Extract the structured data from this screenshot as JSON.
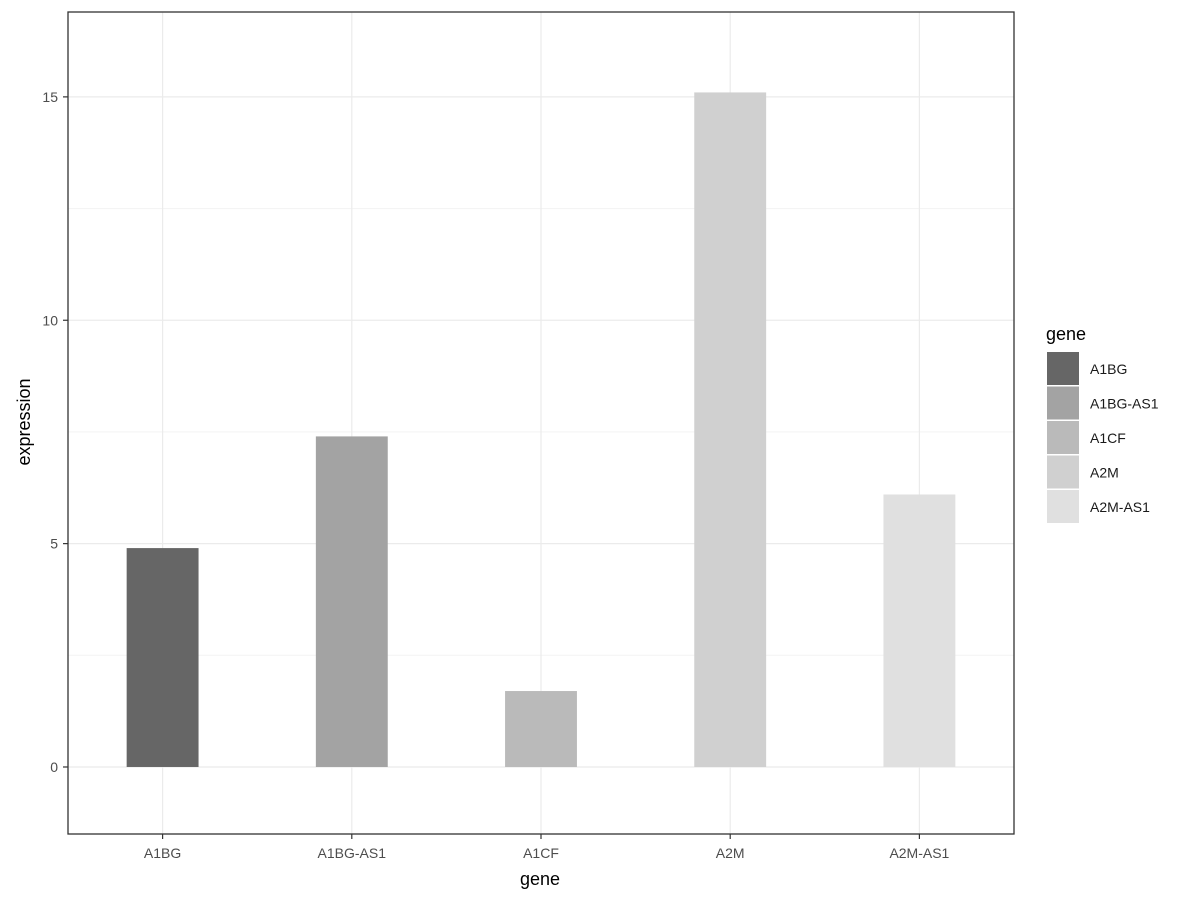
{
  "chart_data": {
    "type": "bar",
    "xlabel": "gene",
    "ylabel": "expression",
    "categories": [
      "A1BG",
      "A1BG-AS1",
      "A1CF",
      "A2M",
      "A2M-AS1"
    ],
    "values": [
      4.9,
      7.4,
      1.7,
      15.1,
      6.1
    ],
    "ylim": [
      -1.5,
      16.9
    ],
    "yticks": [
      0,
      5,
      10,
      15
    ],
    "grid": true,
    "legend": {
      "title": "gene",
      "position": "right",
      "entries": [
        "A1BG",
        "A1BG-AS1",
        "A1CF",
        "A2M",
        "A2M-AS1"
      ]
    },
    "colors": [
      "#666666",
      "#a3a3a3",
      "#bababa",
      "#d0d0d0",
      "#e0e0e0"
    ]
  }
}
